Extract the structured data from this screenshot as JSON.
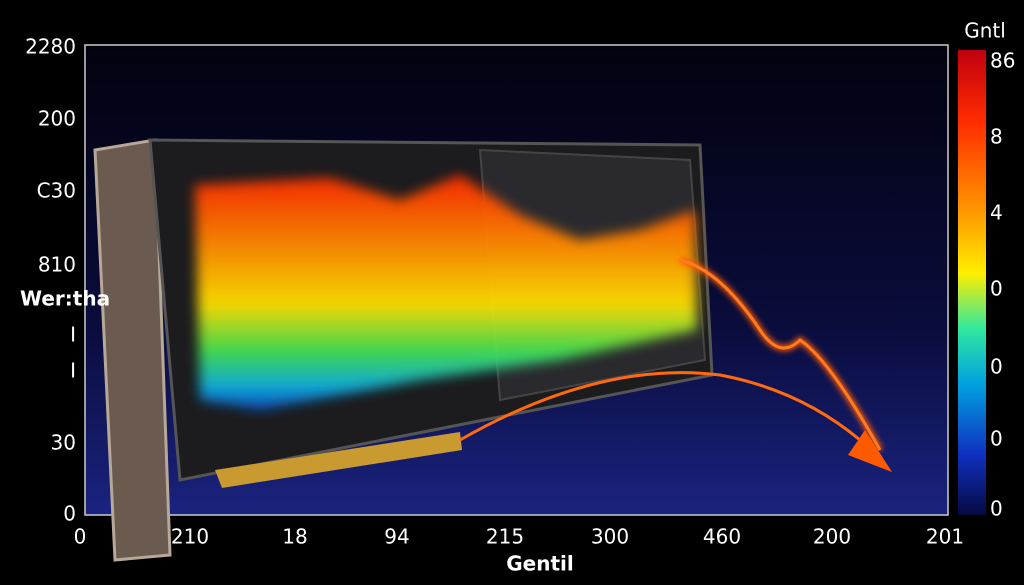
{
  "y_axis": {
    "title": "Wer:tha",
    "labels": [
      "2280",
      "200",
      "C30",
      "810",
      "I",
      "I",
      "30",
      "0"
    ]
  },
  "x_axis": {
    "title": "Gentil",
    "labels": [
      "0",
      "210",
      "18",
      "94",
      "215",
      "300",
      "460",
      "200",
      "201"
    ]
  },
  "colorbar": {
    "title": "Gntl",
    "labels": [
      "86",
      "8",
      "4",
      "0",
      "0",
      "0",
      "0"
    ]
  }
}
